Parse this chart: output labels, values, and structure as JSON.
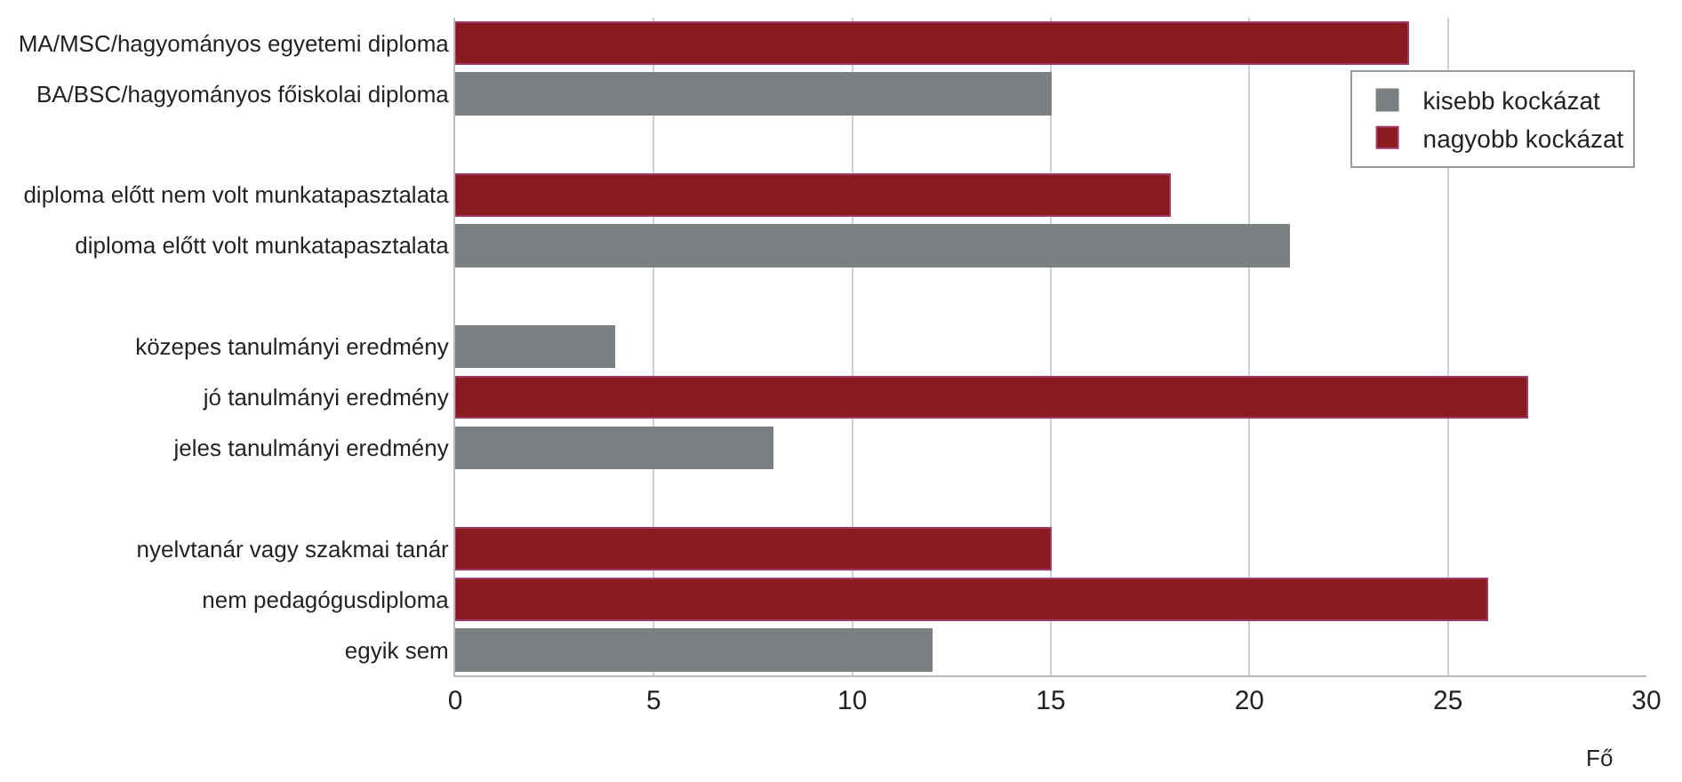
{
  "chart_data": {
    "type": "bar",
    "orientation": "horizontal",
    "stacked": true,
    "categories": [
      "MA/MSC/hagyományos egyetemi diploma",
      "BA/BSC/hagyományos főiskolai diploma",
      null,
      "diploma előtt nem volt munkatapasztalata",
      "diploma előtt volt munkatapasztalata",
      null,
      "közepes tanulmányi eredmény",
      "jó tanulmányi eredmény",
      "jeles tanulmányi eredmény",
      null,
      "nyelvtanár vagy szakmai tanár",
      "nem pedagógusdiploma",
      "egyik sem"
    ],
    "series": [
      {
        "name": "kisebb kockázat",
        "color": "#7a8082",
        "values": [
          null,
          15,
          null,
          null,
          21,
          null,
          4,
          null,
          8,
          null,
          null,
          null,
          12
        ]
      },
      {
        "name": "nagyobb kockázat",
        "color": "#891b1f",
        "values": [
          24,
          null,
          null,
          18,
          null,
          null,
          null,
          27,
          null,
          null,
          15,
          26,
          null
        ]
      }
    ],
    "xlabel": "Fő",
    "xlim": [
      0,
      30
    ],
    "xticks": [
      0,
      5,
      10,
      15,
      20,
      25,
      30
    ],
    "grid": "x",
    "legend": "top right"
  }
}
